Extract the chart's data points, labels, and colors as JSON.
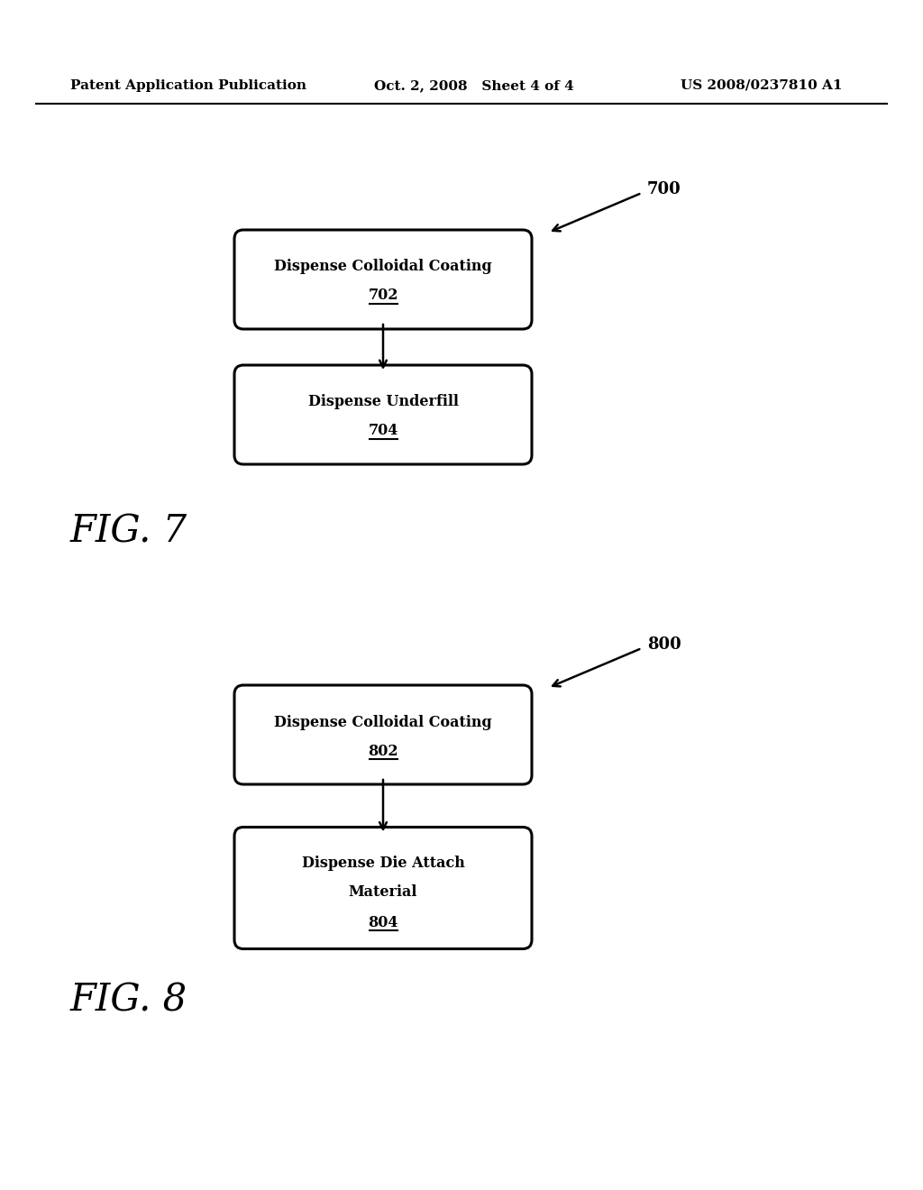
{
  "background_color": "#ffffff",
  "header_left": "Patent Application Publication",
  "header_center": "Oct. 2, 2008   Sheet 4 of 4",
  "header_right": "US 2008/0237810 A1",
  "fig7_label": "FIG. 7",
  "fig8_label": "FIG. 8",
  "fig7_ref": "700",
  "fig8_ref": "800",
  "fig7_box1_line1": "Dispense Colloidal Coating",
  "fig7_box1_line2": "702",
  "fig7_box2_line1": "Dispense Underfill",
  "fig7_box2_line2": "704",
  "fig8_box1_line1": "Dispense Colloidal Coating",
  "fig8_box1_line2": "802",
  "fig8_box2_line1": "Dispense Die Attach",
  "fig8_box2_line2a": "Material",
  "fig8_box2_line2b": "804",
  "box_color": "#000000",
  "box_bg": "#ffffff",
  "text_color": "#000000",
  "arrow_color": "#000000"
}
